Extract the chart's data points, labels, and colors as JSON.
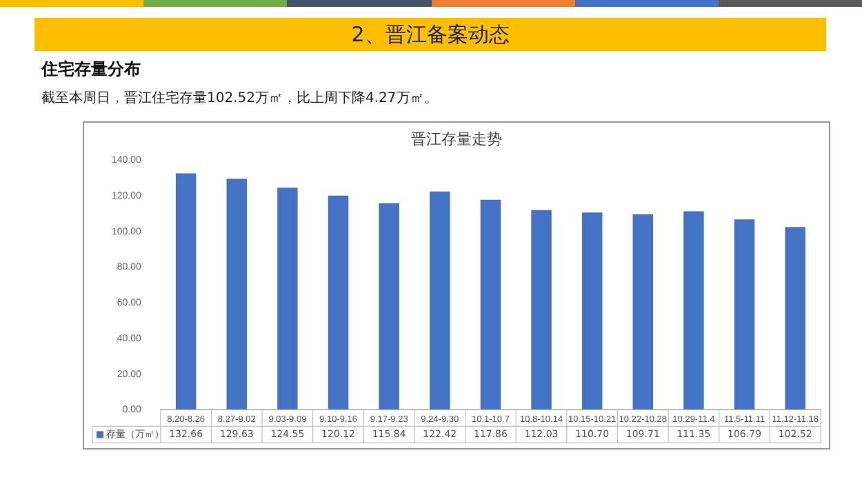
{
  "chart_data": {
    "type": "bar",
    "title": "晋江存量走势",
    "subtitle": "住宅存量分布",
    "annotations": [
      "2、晋江备案动态",
      "截至本周日，晋江住宅存量102.52万㎡，比上周下降4.27万㎡。"
    ],
    "categories": [
      "8.20-8.26",
      "8.27-9.02",
      "9.03-9.09",
      "9.10-9.16",
      "9.17-9.23",
      "9.24-9.30",
      "10.1-10.7",
      "10.8-10.14",
      "10.15-10.21",
      "10.22-10.28",
      "10.29-11.4",
      "11.5-11.11",
      "11.12-11.18"
    ],
    "series": [
      {
        "name": "存量（万㎡）",
        "color": "#4472c4",
        "values": [
          132.66,
          129.63,
          124.55,
          120.12,
          115.84,
          122.42,
          117.86,
          112.03,
          110.7,
          109.71,
          111.35,
          106.79,
          102.52
        ],
        "value_labels": [
          "132.66",
          "129.63",
          "124.55",
          "120.12",
          "115.84",
          "122.42",
          "117.86",
          "112.03",
          "110.70",
          "109.71",
          "111.35",
          "106.79",
          "102.52"
        ]
      }
    ],
    "ylim": [
      0,
      140
    ],
    "yticks": [
      {
        "value": 0,
        "label": "0.00"
      },
      {
        "value": 20,
        "label": "20.00"
      },
      {
        "value": 40,
        "label": "40.00"
      },
      {
        "value": 60,
        "label": "60.00"
      },
      {
        "value": 80,
        "label": "80.00"
      },
      {
        "value": 100,
        "label": "100.00"
      },
      {
        "value": 120,
        "label": "120.00"
      },
      {
        "value": 140,
        "label": "140.00"
      }
    ],
    "grid": false,
    "legend": "bottom left"
  }
}
